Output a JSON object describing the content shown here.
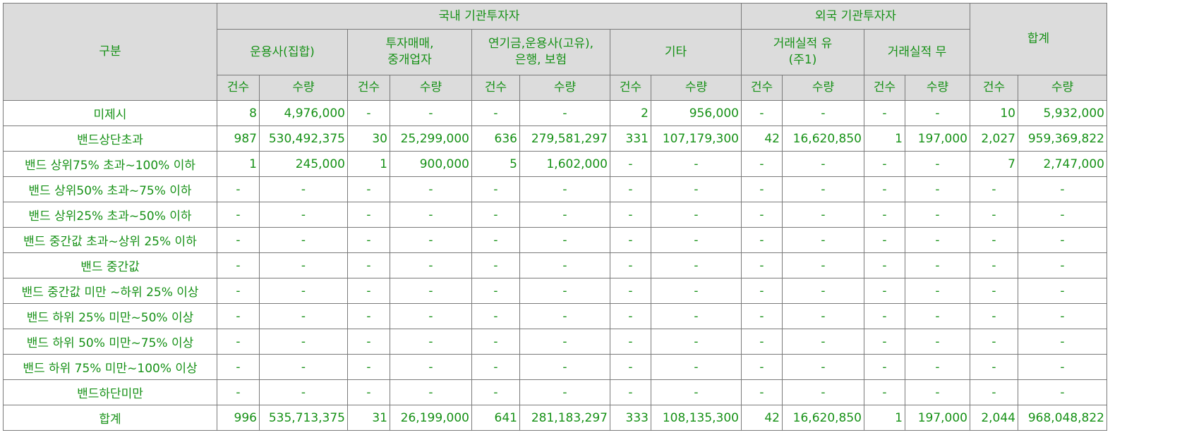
{
  "header": {
    "category": "구분",
    "domestic": "국내 기관투자자",
    "foreign": "외국 기관투자자",
    "total": "합계",
    "sub": {
      "asset_mgmt_collective": "운용사(집합)",
      "investment_brokerage_l1": "투자매매,",
      "investment_brokerage_l2": "중개업자",
      "pension_bank_insurance_l1": "연기금,운용사(고유),",
      "pension_bank_insurance_l2": "은행, 보험",
      "other": "기타",
      "track_record_yes_l1": "거래실적 유",
      "track_record_yes_l2": "(주1)",
      "track_record_no": "거래실적 무"
    },
    "count": "건수",
    "quantity": "수량"
  },
  "rows": [
    {
      "label": "미제시",
      "values": [
        "8",
        "4,976,000",
        "-",
        "-",
        "-",
        "-",
        "2",
        "956,000",
        "-",
        "-",
        "-",
        "-",
        "10",
        "5,932,000"
      ]
    },
    {
      "label": "밴드상단초과",
      "values": [
        "987",
        "530,492,375",
        "30",
        "25,299,000",
        "636",
        "279,581,297",
        "331",
        "107,179,300",
        "42",
        "16,620,850",
        "1",
        "197,000",
        "2,027",
        "959,369,822"
      ]
    },
    {
      "label": "밴드 상위75% 초과~100% 이하",
      "values": [
        "1",
        "245,000",
        "1",
        "900,000",
        "5",
        "1,602,000",
        "-",
        "-",
        "-",
        "-",
        "-",
        "-",
        "7",
        "2,747,000"
      ]
    },
    {
      "label": "밴드 상위50% 초과~75% 이하",
      "values": [
        "-",
        "-",
        "-",
        "-",
        "-",
        "-",
        "-",
        "-",
        "-",
        "-",
        "-",
        "-",
        "-",
        "-"
      ]
    },
    {
      "label": "밴드 상위25% 초과~50% 이하",
      "values": [
        "-",
        "-",
        "-",
        "-",
        "-",
        "-",
        "-",
        "-",
        "-",
        "-",
        "-",
        "-",
        "-",
        "-"
      ]
    },
    {
      "label": "밴드 중간값 초과~상위 25% 이하",
      "values": [
        "-",
        "-",
        "-",
        "-",
        "-",
        "-",
        "-",
        "-",
        "-",
        "-",
        "-",
        "-",
        "-",
        "-"
      ]
    },
    {
      "label": "밴드 중간값",
      "values": [
        "-",
        "-",
        "-",
        "-",
        "-",
        "-",
        "-",
        "-",
        "-",
        "-",
        "-",
        "-",
        "-",
        "-"
      ]
    },
    {
      "label": "밴드 중간값 미만 ~하위 25% 이상",
      "values": [
        "-",
        "-",
        "-",
        "-",
        "-",
        "-",
        "-",
        "-",
        "-",
        "-",
        "-",
        "-",
        "-",
        "-"
      ]
    },
    {
      "label": "밴드 하위 25% 미만~50% 이상",
      "values": [
        "-",
        "-",
        "-",
        "-",
        "-",
        "-",
        "-",
        "-",
        "-",
        "-",
        "-",
        "-",
        "-",
        "-"
      ]
    },
    {
      "label": "밴드 하위 50% 미만~75% 이상",
      "values": [
        "-",
        "-",
        "-",
        "-",
        "-",
        "-",
        "-",
        "-",
        "-",
        "-",
        "-",
        "-",
        "-",
        "-"
      ]
    },
    {
      "label": "밴드 하위 75% 미만~100% 이상",
      "values": [
        "-",
        "-",
        "-",
        "-",
        "-",
        "-",
        "-",
        "-",
        "-",
        "-",
        "-",
        "-",
        "-",
        "-"
      ]
    },
    {
      "label": "밴드하단미만",
      "values": [
        "-",
        "-",
        "-",
        "-",
        "-",
        "-",
        "-",
        "-",
        "-",
        "-",
        "-",
        "-",
        "-",
        "-"
      ]
    },
    {
      "label": "합계",
      "values": [
        "996",
        "535,713,375",
        "31",
        "26,199,000",
        "641",
        "281,183,297",
        "333",
        "108,135,300",
        "42",
        "16,620,850",
        "1",
        "197,000",
        "2,044",
        "968,048,822"
      ]
    }
  ],
  "colors": {
    "text": "#169116",
    "header_bg": "#dcdcdc",
    "border": "#7a7a7a"
  }
}
